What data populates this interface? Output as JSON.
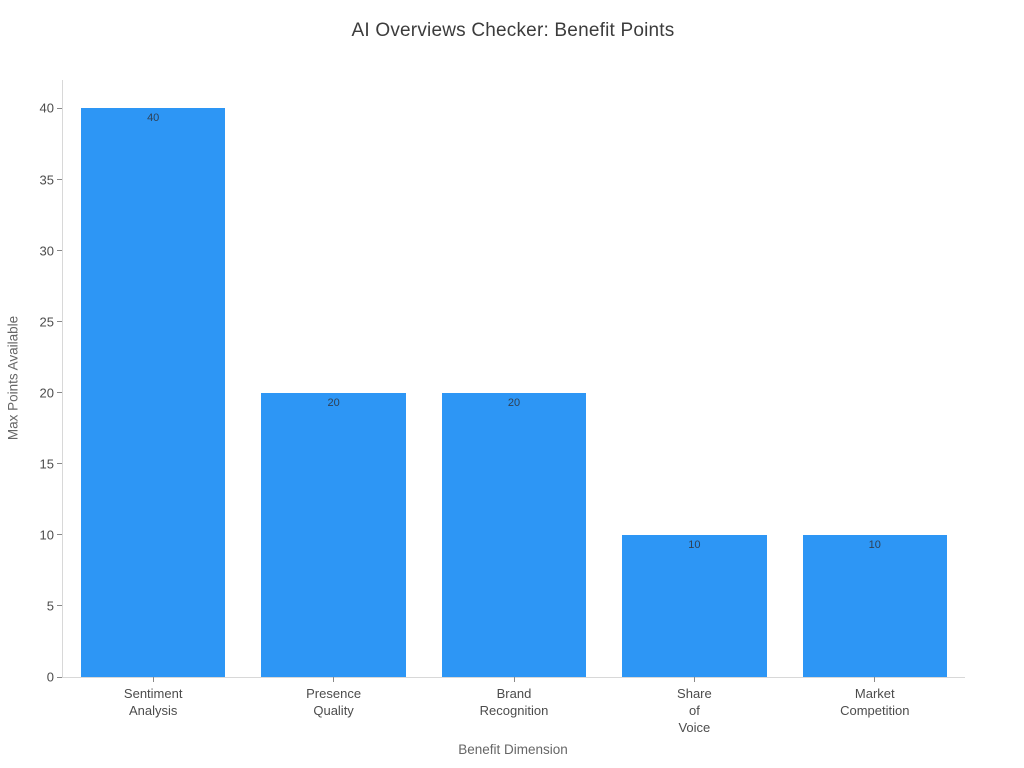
{
  "chart_data": {
    "type": "bar",
    "title": "AI Overviews Checker: Benefit Points",
    "xlabel": "Benefit Dimension",
    "ylabel": "Max Points Available",
    "categories": [
      [
        "Sentiment",
        "Analysis"
      ],
      [
        "Presence",
        "Quality"
      ],
      [
        "Brand",
        "Recognition"
      ],
      [
        "Share",
        "of",
        "Voice"
      ],
      [
        "Market",
        "Competition"
      ]
    ],
    "values": [
      40,
      20,
      20,
      10,
      10
    ],
    "bar_value_labels": [
      "40",
      "20",
      "20",
      "10",
      "10"
    ],
    "yticks": [
      0,
      5,
      10,
      15,
      20,
      25,
      30,
      35,
      40
    ],
    "ylim": [
      0,
      42
    ],
    "grid": false,
    "legend_position": "none",
    "colors": {
      "bar": "#2D96F5",
      "bar_value_label": "#2F4156",
      "axis_line": "#D8D8D8",
      "tick_mark": "#888888",
      "tick_label": "#4C4C4C",
      "axis_title": "#666666",
      "title": "#3C3C3C",
      "background": "#FFFFFF"
    }
  }
}
